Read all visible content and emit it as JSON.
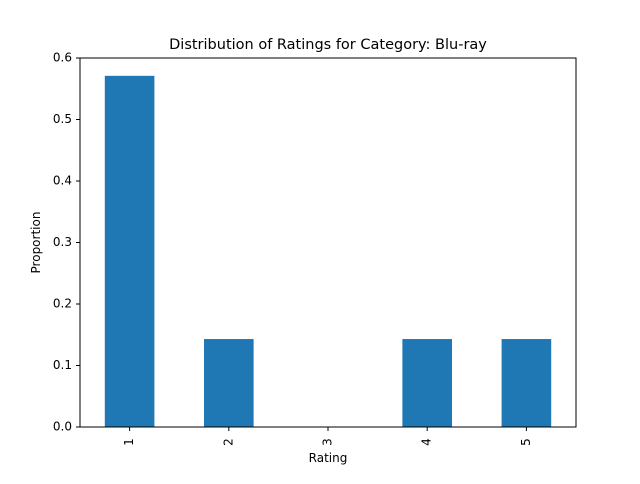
{
  "chart_data": {
    "type": "bar",
    "title": "Distribution of Ratings for Category: Blu-ray",
    "xlabel": "Rating",
    "ylabel": "Proportion",
    "categories": [
      "1",
      "2",
      "3",
      "4",
      "5"
    ],
    "values": [
      0.571,
      0.143,
      0.0,
      0.143,
      0.143
    ],
    "ylim": [
      0,
      0.6
    ],
    "yticks": [
      "0.0",
      "0.1",
      "0.2",
      "0.3",
      "0.4",
      "0.5",
      "0.6"
    ],
    "bar_color": "#1f77b4",
    "grid": false,
    "legend": "none"
  }
}
